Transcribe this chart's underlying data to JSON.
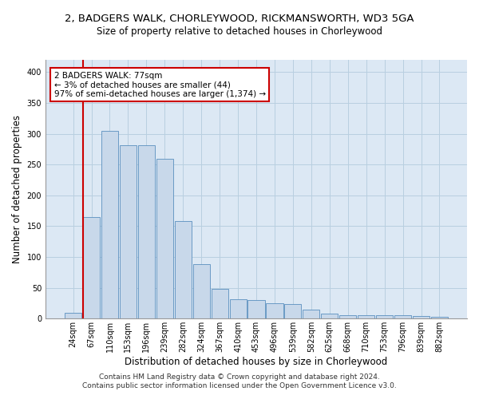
{
  "title": "2, BADGERS WALK, CHORLEYWOOD, RICKMANSWORTH, WD3 5GA",
  "subtitle": "Size of property relative to detached houses in Chorleywood",
  "xlabel": "Distribution of detached houses by size in Chorleywood",
  "ylabel": "Number of detached properties",
  "bin_labels": [
    "24sqm",
    "67sqm",
    "110sqm",
    "153sqm",
    "196sqm",
    "239sqm",
    "282sqm",
    "324sqm",
    "367sqm",
    "410sqm",
    "453sqm",
    "496sqm",
    "539sqm",
    "582sqm",
    "625sqm",
    "668sqm",
    "710sqm",
    "753sqm",
    "796sqm",
    "839sqm",
    "882sqm"
  ],
  "bar_values": [
    10,
    165,
    305,
    281,
    281,
    259,
    159,
    88,
    48,
    31,
    30,
    25,
    24,
    15,
    8,
    5,
    6,
    5,
    5,
    4,
    3
  ],
  "bar_color": "#c8d8ea",
  "bar_edge_color": "#5a8fbf",
  "highlight_bin": 1,
  "red_line_color": "#cc0000",
  "annotation_text": "2 BADGERS WALK: 77sqm\n← 3% of detached houses are smaller (44)\n97% of semi-detached houses are larger (1,374) →",
  "annotation_box_color": "#ffffff",
  "annotation_box_edge_color": "#cc0000",
  "ylim": [
    0,
    420
  ],
  "yticks": [
    0,
    50,
    100,
    150,
    200,
    250,
    300,
    350,
    400
  ],
  "grid_color": "#b8cfe0",
  "background_color": "#dce8f4",
  "footer_text": "Contains HM Land Registry data © Crown copyright and database right 2024.\nContains public sector information licensed under the Open Government Licence v3.0.",
  "title_fontsize": 9.5,
  "subtitle_fontsize": 8.5,
  "xlabel_fontsize": 8.5,
  "ylabel_fontsize": 8.5,
  "tick_fontsize": 7,
  "annotation_fontsize": 7.5,
  "footer_fontsize": 6.5
}
